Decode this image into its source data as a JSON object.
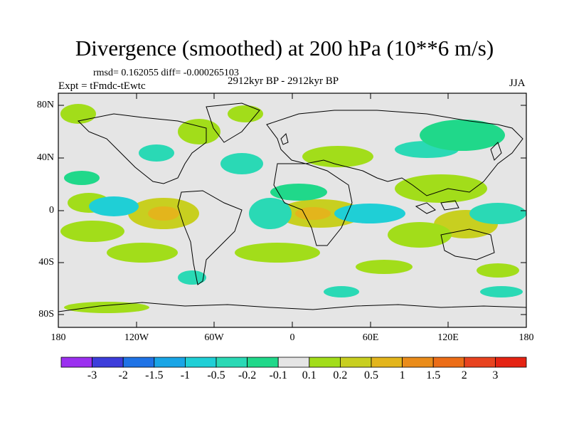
{
  "title": "Divergence (smoothed) at 200 hPa (10**6 m/s)",
  "stats": "rmsd= 0.162055 diff= -0.000265103",
  "experiment": "Expt = tFmdc-tEwtc",
  "period": "2912kyr BP - 2912kyr BP",
  "season": "JJA",
  "lat_labels": [
    "80N",
    "40N",
    "0",
    "40S",
    "80S"
  ],
  "lon_labels": [
    "180",
    "120W",
    "60W",
    "0",
    "60E",
    "120E",
    "180"
  ],
  "colorbar": {
    "labels": [
      "-3",
      "-2",
      "-1.5",
      "-1",
      "-0.5",
      "-0.2",
      "-0.1",
      "0.1",
      "0.2",
      "0.5",
      "1",
      "1.5",
      "2",
      "3"
    ],
    "colors": [
      "#9b30f0",
      "#3d3ddb",
      "#1f73e6",
      "#19a5e6",
      "#1fcfd6",
      "#2ad9b5",
      "#20d88a",
      "#e5e5e5",
      "#a2dd1a",
      "#c8cf20",
      "#e3b51c",
      "#ea8c1a",
      "#ec6d17",
      "#e8431f",
      "#e52313"
    ]
  },
  "map_colors": {
    "background": "#e5e5e5",
    "positive_weak": "#a2dd1a",
    "positive_mid": "#c8cf20",
    "positive_strong": "#e3b51c",
    "negative_weak": "#20d88a",
    "negative_mid": "#2ad9b5",
    "negative_strong": "#1fcfd6"
  }
}
